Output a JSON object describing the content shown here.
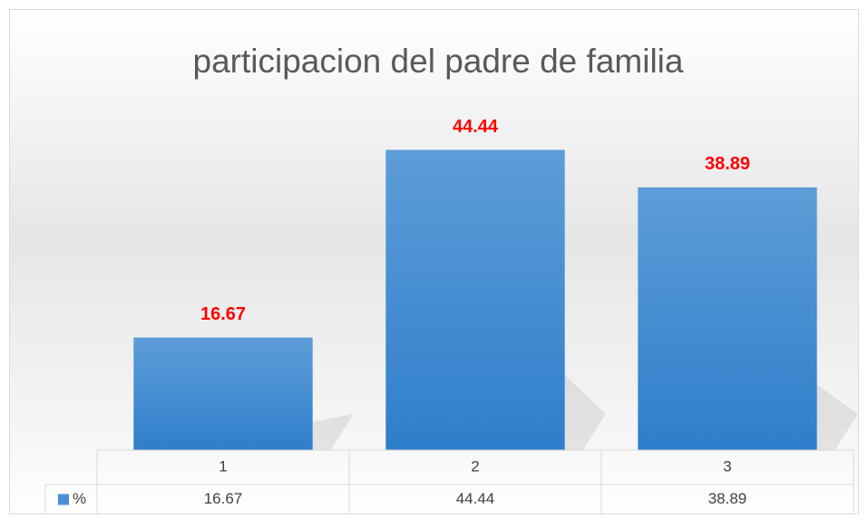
{
  "chart_data": {
    "type": "bar",
    "title": "participacion del padre de familia",
    "categories": [
      "1",
      "2",
      "3"
    ],
    "series": [
      {
        "name": "%",
        "color": "#4a8fd6",
        "values": [
          16.67,
          44.44,
          38.89
        ]
      }
    ],
    "ylim": [
      0,
      50
    ],
    "data_label_color": "#ff0000",
    "data_table": true
  }
}
